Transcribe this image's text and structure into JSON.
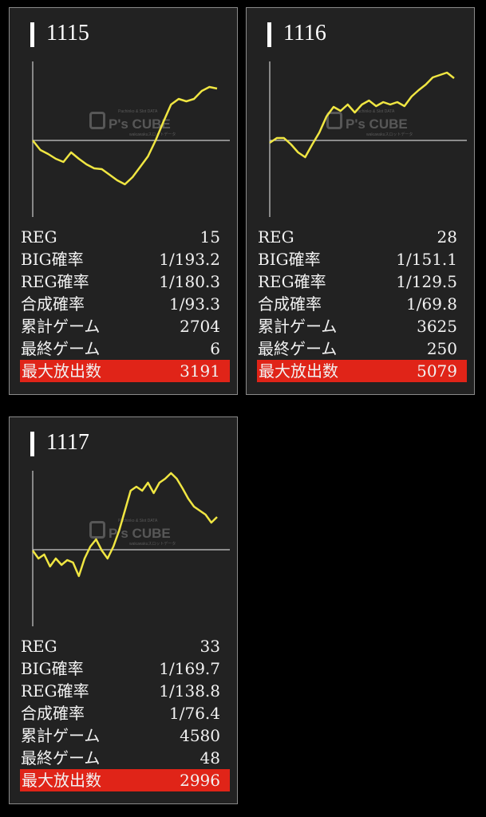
{
  "watermark": {
    "logo": "P's CUBE",
    "tagline": "Pachinko & Slot DATA",
    "sub": "wakuwakuスロットデータ"
  },
  "colors": {
    "line": "#f0e642",
    "highlight": "#e02418",
    "axis": "#cccccc"
  },
  "labels": [
    "REG",
    "BIG確率",
    "REG確率",
    "合成確率",
    "累計ゲーム",
    "最終ゲーム",
    "最大放出数"
  ],
  "cards": [
    {
      "title": "1115",
      "values": [
        "15",
        "1/193.2",
        "1/180.3",
        "1/93.3",
        "2704",
        "6",
        "3191"
      ],
      "chart_data": {
        "type": "line",
        "series": [
          {
            "values": [
              0,
              -12,
              -17,
              -23,
              -27,
              -15,
              -23,
              -30,
              -35,
              -36,
              -43,
              -50,
              -55,
              -46,
              -33,
              -20,
              0,
              23,
              45,
              52,
              49,
              52,
              62,
              67,
              65
            ]
          }
        ]
      }
    },
    {
      "title": "1116",
      "values": [
        "28",
        "1/151.1",
        "1/129.5",
        "1/69.8",
        "3625",
        "250",
        "5079"
      ],
      "chart_data": {
        "type": "line",
        "series": [
          {
            "values": [
              -3,
              3,
              3,
              -5,
              -15,
              -21,
              -5,
              10,
              30,
              42,
              37,
              45,
              35,
              45,
              50,
              43,
              48,
              45,
              48,
              43,
              55,
              63,
              70,
              79,
              82,
              85,
              78
            ]
          }
        ]
      }
    },
    {
      "title": "1117",
      "values": [
        "33",
        "1/169.7",
        "1/138.8",
        "1/76.4",
        "4580",
        "48",
        "2996"
      ],
      "chart_data": {
        "type": "line",
        "series": [
          {
            "values": [
              -1,
              -11,
              -6,
              -21,
              -11,
              -19,
              -13,
              -16,
              -33,
              -11,
              4,
              13,
              -1,
              -11,
              4,
              24,
              49,
              74,
              79,
              74,
              84,
              71,
              84,
              89,
              96,
              89,
              77,
              64,
              54,
              49,
              44,
              34,
              41
            ]
          }
        ]
      }
    }
  ]
}
